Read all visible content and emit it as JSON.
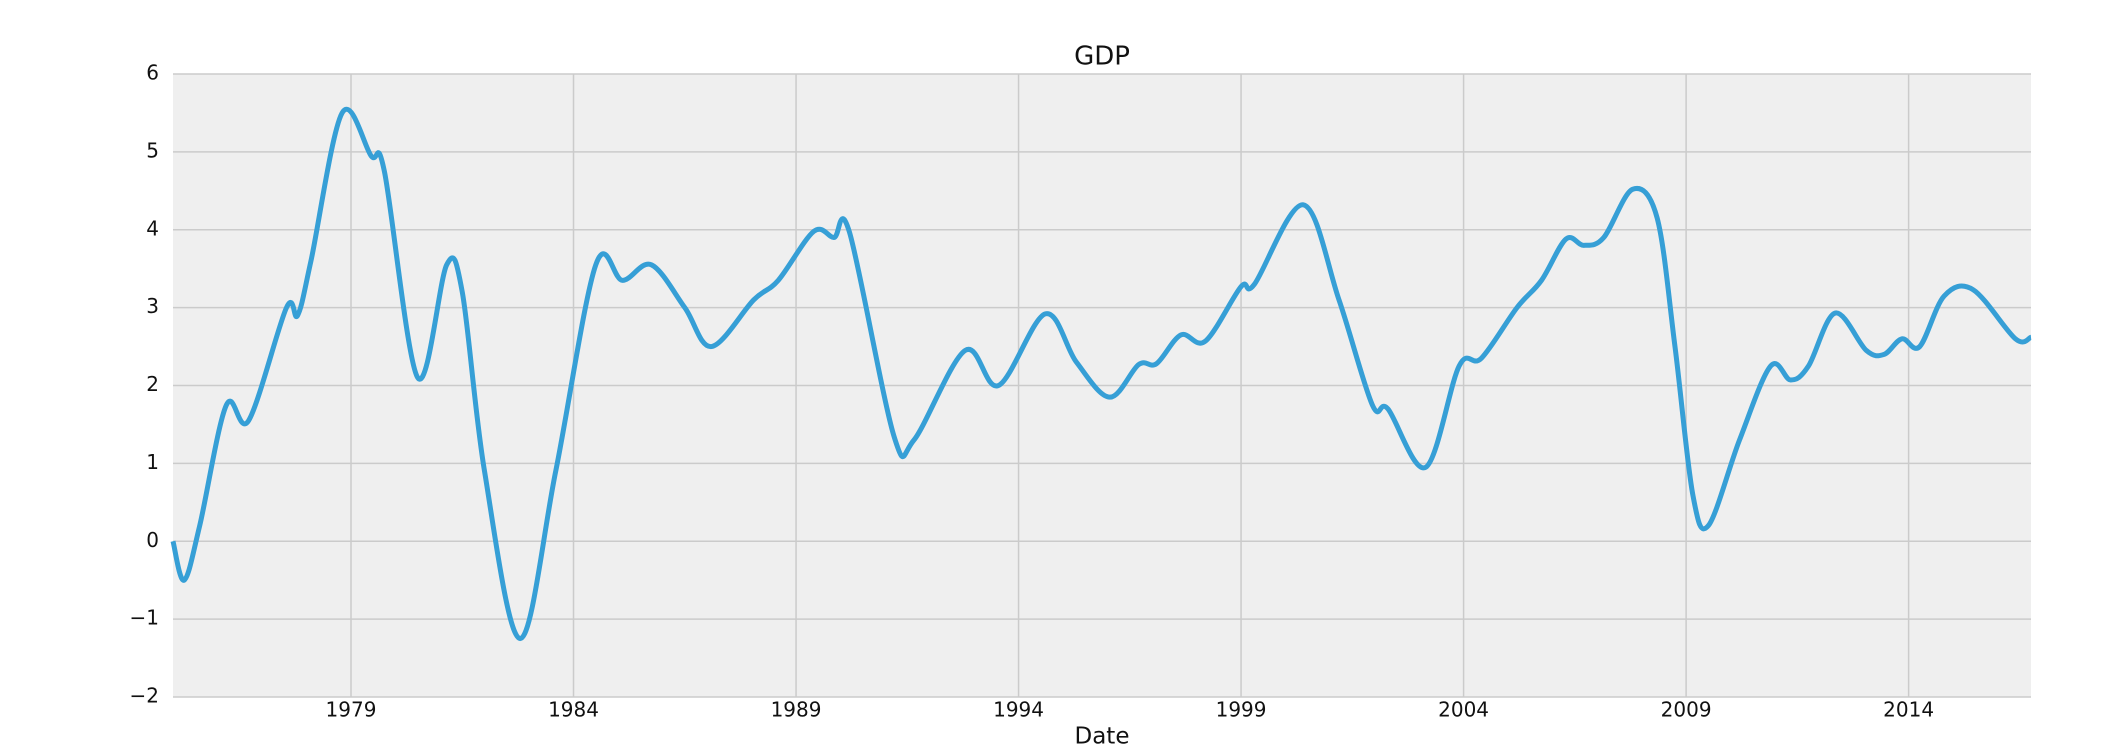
{
  "chart_data": {
    "type": "line",
    "title": "GDP",
    "x_label": "Date",
    "x": [
      1975.0,
      1975.25,
      1975.6,
      1976.2,
      1976.7,
      1977.55,
      1977.8,
      1978.1,
      1978.8,
      1979.45,
      1979.75,
      1980.5,
      1981.15,
      1981.5,
      1982.0,
      1982.8,
      1983.6,
      1984.5,
      1985.1,
      1985.75,
      1986.5,
      1987.1,
      1988.05,
      1988.6,
      1989.4,
      1989.85,
      1990.2,
      1991.2,
      1991.65,
      1992.8,
      1993.55,
      1994.6,
      1995.3,
      1996.05,
      1996.7,
      1997.1,
      1997.65,
      1998.2,
      1999.0,
      1999.3,
      2000.4,
      2001.2,
      2001.95,
      2002.3,
      2003.15,
      2003.9,
      2004.4,
      2005.2,
      2005.75,
      2006.3,
      2006.7,
      2007.15,
      2007.8,
      2008.35,
      2008.75,
      2009.15,
      2009.5,
      2010.2,
      2010.9,
      2011.35,
      2011.75,
      2012.35,
      2013.05,
      2013.45,
      2013.85,
      2014.25,
      2014.8,
      2015.45,
      2016.4,
      2016.75
    ],
    "series": [
      {
        "name": "GDP",
        "color": "#369fd6",
        "values": [
          0,
          -0.5,
          0.2,
          1.75,
          1.55,
          3.0,
          2.9,
          3.6,
          5.5,
          4.95,
          4.75,
          2.1,
          3.55,
          3.2,
          0.9,
          -1.25,
          0.9,
          3.55,
          3.35,
          3.55,
          3.0,
          2.5,
          3.1,
          3.35,
          3.98,
          3.9,
          3.97,
          1.35,
          1.3,
          2.45,
          2.0,
          2.92,
          2.3,
          1.85,
          2.27,
          2.28,
          2.65,
          2.57,
          3.27,
          3.3,
          4.32,
          3.1,
          1.75,
          1.7,
          0.95,
          2.25,
          2.35,
          3.0,
          3.35,
          3.88,
          3.8,
          3.9,
          4.52,
          4.15,
          2.5,
          0.6,
          0.2,
          1.3,
          2.25,
          2.07,
          2.25,
          2.93,
          2.45,
          2.4,
          2.6,
          2.5,
          3.15,
          3.23,
          2.6,
          2.62
        ]
      }
    ],
    "xlim": [
      1975.0,
      2016.75
    ],
    "xticks": [
      1979,
      1984,
      1989,
      1994,
      1999,
      2004,
      2009,
      2014
    ],
    "ylim": [
      -2,
      6
    ],
    "yticks": [
      {
        "value": -2,
        "label": "−2"
      },
      {
        "value": -1,
        "label": "−1"
      },
      0,
      1,
      2,
      3,
      4,
      5,
      6
    ],
    "grid": true
  }
}
